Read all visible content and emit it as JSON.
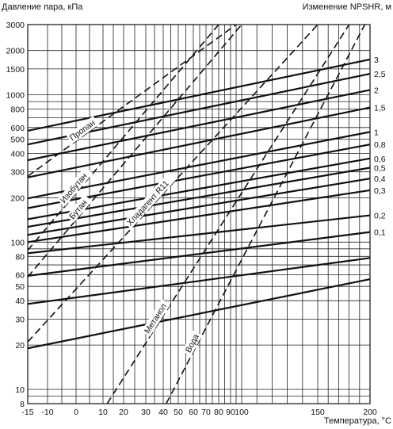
{
  "chart_data": {
    "type": "line",
    "title_left": "Давление пара, кПа",
    "title_right": "Изменение NPSHR, м",
    "xlabel": "Температура, °С",
    "x_ticks": [
      -15,
      -10,
      0,
      10,
      20,
      30,
      40,
      50,
      60,
      70,
      80,
      90,
      100,
      150,
      200
    ],
    "x_tick_labels": [
      "-15",
      "-10",
      "0",
      "10",
      "20",
      "30",
      "40",
      "50",
      "60",
      "70",
      "80",
      "90",
      "100",
      "150",
      "200"
    ],
    "y_scale": "log",
    "ylim": [
      8,
      3000
    ],
    "y_ticks": [
      8,
      10,
      20,
      30,
      40,
      50,
      60,
      80,
      100,
      200,
      300,
      400,
      500,
      600,
      800,
      1000,
      1500,
      2000,
      3000
    ],
    "y_tick_labels": [
      "8",
      "10",
      "20",
      "30",
      "40",
      "50",
      "60",
      "80",
      "100",
      "200",
      "300",
      "400",
      "500",
      "600",
      "800",
      "1000",
      "1500",
      "2000",
      "3000"
    ],
    "y_grid_lines": [
      8,
      9,
      10,
      20,
      30,
      40,
      50,
      60,
      70,
      80,
      90,
      100,
      200,
      300,
      400,
      500,
      600,
      700,
      800,
      900,
      1000,
      1500,
      2000,
      3000
    ],
    "x_grid_lines": [
      -15,
      -10,
      -5,
      0,
      5,
      10,
      15,
      20,
      25,
      30,
      35,
      40,
      45,
      50,
      55,
      60,
      65,
      70,
      75,
      80,
      85,
      90,
      95,
      100,
      110,
      120,
      130,
      140,
      150,
      160,
      170,
      180,
      190,
      200
    ],
    "grid": true,
    "npshr_series": [
      {
        "label": "3",
        "y_start": 570,
        "y_end": 1740
      },
      {
        "label": "2,5",
        "y_start": 460,
        "y_end": 1390
      },
      {
        "label": "2",
        "y_start": 360,
        "y_end": 1080
      },
      {
        "label": "1,5",
        "y_start": 275,
        "y_end": 820
      },
      {
        "label": "1",
        "y_start": 198,
        "y_end": 560
      },
      {
        "label": "0,8",
        "y_start": 170,
        "y_end": 460
      },
      {
        "label": "0,6",
        "y_start": 143,
        "y_end": 370
      },
      {
        "label": "0,5",
        "y_start": 127,
        "y_end": 320
      },
      {
        "label": "0,4",
        "y_start": 112,
        "y_end": 270
      },
      {
        "label": "0,3",
        "y_start": 100,
        "y_end": 225
      },
      {
        "label": "0,2",
        "y_start": 84,
        "y_end": 152
      },
      {
        "label": "0,1",
        "y_start": 59,
        "y_end": 117
      },
      {
        "label": "",
        "y_start": 38,
        "y_end": 78
      },
      {
        "label": "",
        "y_start": 19,
        "y_end": 56
      }
    ],
    "fluid_series": [
      {
        "name": "Пропан",
        "points": [
          [
            -15,
            280
          ],
          [
            95,
            3000
          ]
        ]
      },
      {
        "name": "Изобутан",
        "points": [
          [
            -15,
            88
          ],
          [
            80,
            3000
          ]
        ]
      },
      {
        "name": "Бутан",
        "points": [
          [
            -15,
            58
          ],
          [
            100,
            3000
          ]
        ]
      },
      {
        "name": "Хладагент R11",
        "points": [
          [
            -15,
            21
          ],
          [
            150,
            3000
          ]
        ]
      },
      {
        "name": "Метанол",
        "points": [
          [
            12,
            8
          ],
          [
            180,
            3000
          ]
        ]
      },
      {
        "name": "Вода",
        "points": [
          [
            42,
            8
          ],
          [
            195,
            3000
          ]
        ]
      }
    ]
  }
}
